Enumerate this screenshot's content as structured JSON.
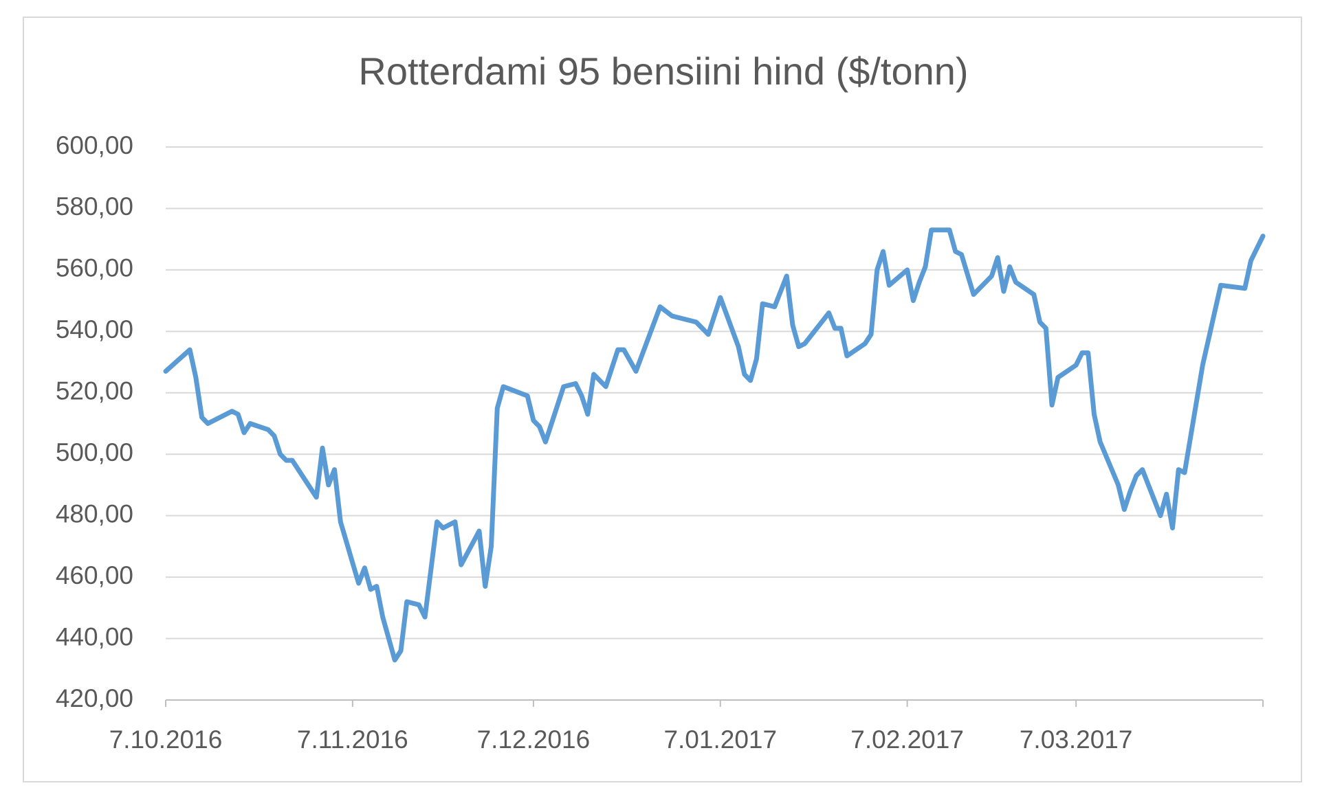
{
  "chart_data": {
    "type": "line",
    "title": "Rotterdami 95 bensiini hind ($/tonn)",
    "color": "#5b9bd5",
    "grid": true,
    "x": [
      "2016-10-07",
      "2016-10-11",
      "2016-10-12",
      "2016-10-13",
      "2016-10-14",
      "2016-10-18",
      "2016-10-19",
      "2016-10-20",
      "2016-10-21",
      "2016-10-24",
      "2016-10-25",
      "2016-10-26",
      "2016-10-27",
      "2016-10-28",
      "2016-11-01",
      "2016-11-02",
      "2016-11-03",
      "2016-11-04",
      "2016-11-05",
      "2016-11-08",
      "2016-11-09",
      "2016-11-10",
      "2016-11-11",
      "2016-11-12",
      "2016-11-14",
      "2016-11-15",
      "2016-11-16",
      "2016-11-18",
      "2016-11-19",
      "2016-11-21",
      "2016-11-22",
      "2016-11-24",
      "2016-11-25",
      "2016-11-28",
      "2016-11-29",
      "2016-11-30",
      "2016-12-01",
      "2016-12-02",
      "2016-12-06",
      "2016-12-07",
      "2016-12-08",
      "2016-12-09",
      "2016-12-12",
      "2016-12-14",
      "2016-12-15",
      "2016-12-16",
      "2016-12-17",
      "2016-12-19",
      "2016-12-21",
      "2016-12-22",
      "2016-12-24",
      "2016-12-28",
      "2016-12-30",
      "2017-01-03",
      "2017-01-05",
      "2017-01-07",
      "2017-01-10",
      "2017-01-11",
      "2017-01-12",
      "2017-01-13",
      "2017-01-14",
      "2017-01-16",
      "2017-01-18",
      "2017-01-19",
      "2017-01-20",
      "2017-01-21",
      "2017-01-25",
      "2017-01-26",
      "2017-01-27",
      "2017-01-28",
      "2017-01-31",
      "2017-02-01",
      "2017-02-02",
      "2017-02-03",
      "2017-02-04",
      "2017-02-07",
      "2017-02-08",
      "2017-02-09",
      "2017-02-10",
      "2017-02-11",
      "2017-02-14",
      "2017-02-15",
      "2017-02-16",
      "2017-02-18",
      "2017-02-21",
      "2017-02-22",
      "2017-02-23",
      "2017-02-24",
      "2017-02-25",
      "2017-02-28",
      "2017-03-01",
      "2017-03-02",
      "2017-03-03",
      "2017-03-04",
      "2017-03-07",
      "2017-03-08",
      "2017-03-09",
      "2017-03-10",
      "2017-03-11",
      "2017-03-14",
      "2017-03-15",
      "2017-03-16",
      "2017-03-17",
      "2017-03-18",
      "2017-03-21",
      "2017-03-22",
      "2017-03-23",
      "2017-03-24",
      "2017-03-25",
      "2017-03-28",
      "2017-03-31",
      "2017-04-04",
      "2017-04-05",
      "2017-04-07"
    ],
    "values": [
      527,
      534,
      525,
      512,
      510,
      514,
      513,
      507,
      510,
      508,
      506,
      500,
      498,
      498,
      486,
      502,
      490,
      495,
      478,
      458,
      463,
      456,
      457,
      447,
      433,
      436,
      452,
      451,
      447,
      478,
      476,
      478,
      464,
      475,
      457,
      470,
      515,
      522,
      519,
      511,
      509,
      504,
      522,
      523,
      519,
      513,
      526,
      522,
      534,
      534,
      527,
      548,
      545,
      543,
      539,
      551,
      535,
      526,
      524,
      531,
      549,
      548,
      558,
      542,
      535,
      536,
      546,
      541,
      541,
      532,
      536,
      539,
      560,
      566,
      555,
      560,
      550,
      556,
      561,
      573,
      573,
      566,
      565,
      552,
      558,
      564,
      553,
      561,
      556,
      552,
      543,
      541,
      516,
      525,
      529,
      533,
      533,
      513,
      504,
      490,
      482,
      488,
      493,
      495,
      480,
      487,
      476,
      495,
      494,
      529,
      555,
      554,
      563,
      571
    ],
    "xlim": [
      "2016-10-07",
      "2017-04-07"
    ],
    "xticks": [
      {
        "value": "2016-10-07",
        "label": "7.10.2016"
      },
      {
        "value": "2016-11-07",
        "label": "7.11.2016"
      },
      {
        "value": "2016-12-07",
        "label": "7.12.2016"
      },
      {
        "value": "2017-01-07",
        "label": "7.01.2017"
      },
      {
        "value": "2017-02-07",
        "label": "7.02.2017"
      },
      {
        "value": "2017-03-07",
        "label": "7.03.2017"
      }
    ],
    "ylim": [
      420,
      600
    ],
    "yticks": [
      {
        "value": 420,
        "label": "420,00"
      },
      {
        "value": 440,
        "label": "440,00"
      },
      {
        "value": 460,
        "label": "460,00"
      },
      {
        "value": 480,
        "label": "480,00"
      },
      {
        "value": 500,
        "label": "500,00"
      },
      {
        "value": 520,
        "label": "520,00"
      },
      {
        "value": 540,
        "label": "540,00"
      },
      {
        "value": 560,
        "label": "560,00"
      },
      {
        "value": 580,
        "label": "580,00"
      },
      {
        "value": 600,
        "label": "600,00"
      }
    ]
  }
}
